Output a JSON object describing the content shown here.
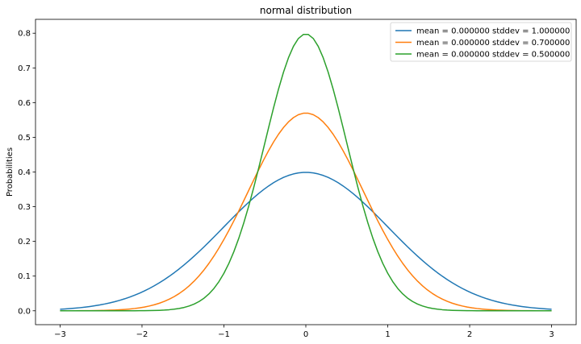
{
  "chart_data": {
    "type": "line",
    "title": "normal distribution",
    "xlabel": "",
    "ylabel": "Probabilities",
    "xlim": [
      -3.3,
      3.3
    ],
    "ylim": [
      -0.04,
      0.84
    ],
    "xticks": [
      -3,
      -2,
      -1,
      0,
      1,
      2,
      3
    ],
    "xtick_labels": [
      "−3",
      "−2",
      "−1",
      "0",
      "1",
      "2",
      "3"
    ],
    "yticks": [
      0.0,
      0.1,
      0.2,
      0.3,
      0.4,
      0.5,
      0.6,
      0.7,
      0.8
    ],
    "ytick_labels": [
      "0.0",
      "0.1",
      "0.2",
      "0.3",
      "0.4",
      "0.5",
      "0.6",
      "0.7",
      "0.8"
    ],
    "grid": false,
    "legend_position": "top-right",
    "x": [
      -3.0,
      -2.5,
      -2.0,
      -1.5,
      -1.0,
      -0.75,
      -0.5,
      -0.25,
      0.0,
      0.25,
      0.5,
      0.75,
      1.0,
      1.5,
      2.0,
      2.5,
      3.0
    ],
    "series": [
      {
        "name": "mean = 0.000000 stddev = 1.000000",
        "color": "#1f77b4",
        "mean": 0.0,
        "stddev": 1.0,
        "values": [
          0.004,
          0.018,
          0.054,
          0.13,
          0.242,
          0.301,
          0.352,
          0.387,
          0.399,
          0.387,
          0.352,
          0.301,
          0.242,
          0.13,
          0.054,
          0.018,
          0.004
        ]
      },
      {
        "name": "mean = 0.000000 stddev = 0.700000",
        "color": "#ff7f0e",
        "mean": 0.0,
        "stddev": 0.7,
        "values": [
          0.0,
          0.001,
          0.01,
          0.058,
          0.207,
          0.323,
          0.443,
          0.533,
          0.57,
          0.533,
          0.443,
          0.323,
          0.207,
          0.058,
          0.01,
          0.001,
          0.0
        ]
      },
      {
        "name": "mean = 0.000000 stddev = 0.500000",
        "color": "#2ca02c",
        "mean": 0.0,
        "stddev": 0.5,
        "values": [
          0.0,
          0.0,
          0.0,
          0.009,
          0.108,
          0.259,
          0.484,
          0.704,
          0.798,
          0.704,
          0.484,
          0.259,
          0.108,
          0.009,
          0.0,
          0.0,
          0.0
        ]
      }
    ]
  }
}
